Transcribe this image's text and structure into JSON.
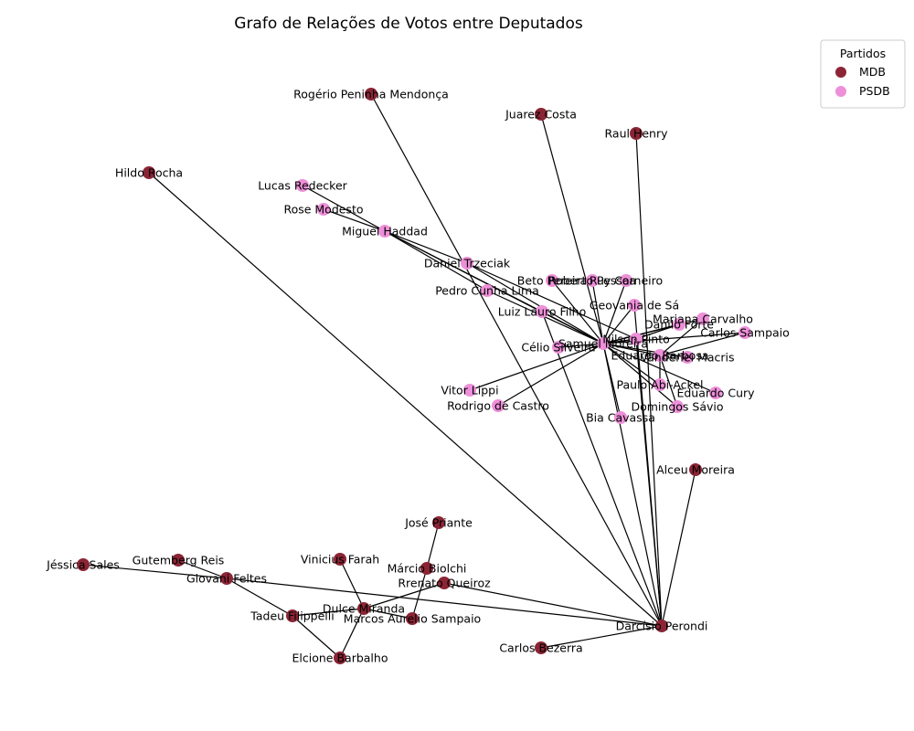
{
  "title": "Grafo de Relações de Votos entre Deputados",
  "legend": {
    "title": "Partidos",
    "placement": "top-right",
    "entries": [
      {
        "name": "MDB",
        "color": "#8b2535"
      },
      {
        "name": "PSDB",
        "color": "#ee8fd9"
      }
    ]
  },
  "party_colors": {
    "MDB": "#8b2535",
    "PSDB": "#ee8fd9"
  },
  "nodes": [
    {
      "id": "rogerio",
      "label": "Rogério Peninha Mendonça",
      "party": "MDB"
    },
    {
      "id": "juarez",
      "label": "Juarez Costa",
      "party": "MDB"
    },
    {
      "id": "raul",
      "label": "Raul Henry",
      "party": "MDB"
    },
    {
      "id": "hildo",
      "label": "Hildo Rocha",
      "party": "MDB"
    },
    {
      "id": "alceu",
      "label": "Alceu Moreira",
      "party": "MDB"
    },
    {
      "id": "darcisio",
      "label": "Darcísio Perondi",
      "party": "MDB"
    },
    {
      "id": "carlosbezerra",
      "label": "Carlos Bezerra",
      "party": "MDB"
    },
    {
      "id": "jose",
      "label": "José Priante",
      "party": "MDB"
    },
    {
      "id": "marcio",
      "label": "Márcio Biolchi",
      "party": "MDB"
    },
    {
      "id": "rrenato",
      "label": "Rrenato Queiroz",
      "party": "MDB"
    },
    {
      "id": "vinicius",
      "label": "Vinicius Farah",
      "party": "MDB"
    },
    {
      "id": "dulce",
      "label": "Dulce Miranda",
      "party": "MDB"
    },
    {
      "id": "marcos",
      "label": "Marcos Aurelio Sampaio",
      "party": "MDB"
    },
    {
      "id": "tadeu",
      "label": "Tadeu Filippelli",
      "party": "MDB"
    },
    {
      "id": "elcione",
      "label": "Elcione Barbalho",
      "party": "MDB"
    },
    {
      "id": "gutemberg",
      "label": "Gutemberg Reis",
      "party": "MDB"
    },
    {
      "id": "giovani",
      "label": "Giovani Feltes",
      "party": "MDB"
    },
    {
      "id": "jessica",
      "label": "Jéssica Sales",
      "party": "MDB"
    },
    {
      "id": "lucas",
      "label": "Lucas Redecker",
      "party": "PSDB"
    },
    {
      "id": "rose",
      "label": "Rose Modesto",
      "party": "PSDB"
    },
    {
      "id": "miguel",
      "label": "Miguel Haddad",
      "party": "PSDB"
    },
    {
      "id": "daniel",
      "label": "Daniel Trzeciak",
      "party": "PSDB"
    },
    {
      "id": "pedro",
      "label": "Pedro Cunha Lima",
      "party": "PSDB"
    },
    {
      "id": "luiz",
      "label": "Luiz Lauro Filho",
      "party": "PSDB"
    },
    {
      "id": "beto",
      "label": "Beto Pereira",
      "party": "PSDB"
    },
    {
      "id": "roberto",
      "label": "Roberto Pessoa",
      "party": "PSDB"
    },
    {
      "id": "ruy",
      "label": "Ruy Carneiro",
      "party": "PSDB"
    },
    {
      "id": "geovania",
      "label": "Geovania de Sá",
      "party": "PSDB"
    },
    {
      "id": "mariana",
      "label": "Mariana Carvalho",
      "party": "PSDB"
    },
    {
      "id": "danilo",
      "label": "Danilo Forte",
      "party": "PSDB"
    },
    {
      "id": "carlossampaio",
      "label": "Carlos Sampaio",
      "party": "PSDB"
    },
    {
      "id": "samuel",
      "label": "Samuel Moreira",
      "party": "PSDB"
    },
    {
      "id": "nilson",
      "label": "Nilson Pinto",
      "party": "PSDB"
    },
    {
      "id": "celio",
      "label": "Célio Silveira",
      "party": "PSDB"
    },
    {
      "id": "eduardobarbosa",
      "label": "Eduardo Barbosa",
      "party": "PSDB"
    },
    {
      "id": "vanderlei",
      "label": "Vanderlei Macris",
      "party": "PSDB"
    },
    {
      "id": "paulo",
      "label": "Paulo Abi-Ackel",
      "party": "PSDB"
    },
    {
      "id": "eduardocury",
      "label": "Eduardo Cury",
      "party": "PSDB"
    },
    {
      "id": "domingos",
      "label": "Domingos Sávio",
      "party": "PSDB"
    },
    {
      "id": "vitor",
      "label": "Vitor Lippi",
      "party": "PSDB"
    },
    {
      "id": "rodrigo",
      "label": "Rodrigo de Castro",
      "party": "PSDB"
    },
    {
      "id": "bia",
      "label": "Bia Cavassa",
      "party": "PSDB"
    }
  ],
  "edges": [
    [
      "rogerio",
      "darcisio"
    ],
    [
      "juarez",
      "samuel"
    ],
    [
      "raul",
      "darcisio"
    ],
    [
      "hildo",
      "darcisio"
    ],
    [
      "alceu",
      "darcisio"
    ],
    [
      "carlosbezerra",
      "darcisio"
    ],
    [
      "giovani",
      "darcisio"
    ],
    [
      "rrenato",
      "darcisio"
    ],
    [
      "samuel",
      "darcisio"
    ],
    [
      "nilson",
      "darcisio"
    ],
    [
      "luiz",
      "darcisio"
    ],
    [
      "geovania",
      "darcisio"
    ],
    [
      "vinicius",
      "dulce"
    ],
    [
      "dulce",
      "elcione"
    ],
    [
      "dulce",
      "marcos"
    ],
    [
      "dulce",
      "rrenato"
    ],
    [
      "dulce",
      "tadeu"
    ],
    [
      "jose",
      "marcio"
    ],
    [
      "marcio",
      "marcos"
    ],
    [
      "tadeu",
      "giovani"
    ],
    [
      "tadeu",
      "elcione"
    ],
    [
      "gutemberg",
      "giovani"
    ],
    [
      "jessica",
      "giovani"
    ],
    [
      "lucas",
      "miguel"
    ],
    [
      "rose",
      "miguel"
    ],
    [
      "miguel",
      "daniel"
    ],
    [
      "miguel",
      "pedro"
    ],
    [
      "miguel",
      "luiz"
    ],
    [
      "miguel",
      "samuel"
    ],
    [
      "daniel",
      "samuel"
    ],
    [
      "daniel",
      "nilson"
    ],
    [
      "pedro",
      "samuel"
    ],
    [
      "luiz",
      "samuel"
    ],
    [
      "beto",
      "samuel"
    ],
    [
      "roberto",
      "samuel"
    ],
    [
      "ruy",
      "samuel"
    ],
    [
      "geovania",
      "samuel"
    ],
    [
      "mariana",
      "samuel"
    ],
    [
      "danilo",
      "samuel"
    ],
    [
      "carlossampaio",
      "samuel"
    ],
    [
      "celio",
      "samuel"
    ],
    [
      "nilson",
      "samuel"
    ],
    [
      "eduardobarbosa",
      "samuel"
    ],
    [
      "vanderlei",
      "samuel"
    ],
    [
      "paulo",
      "samuel"
    ],
    [
      "eduardocury",
      "samuel"
    ],
    [
      "domingos",
      "samuel"
    ],
    [
      "vitor",
      "samuel"
    ],
    [
      "rodrigo",
      "samuel"
    ],
    [
      "bia",
      "samuel"
    ],
    [
      "mariana",
      "eduardobarbosa"
    ],
    [
      "carlossampaio",
      "eduardobarbosa"
    ],
    [
      "danilo",
      "nilson"
    ],
    [
      "paulo",
      "eduardobarbosa"
    ],
    [
      "domingos",
      "eduardobarbosa"
    ]
  ]
}
